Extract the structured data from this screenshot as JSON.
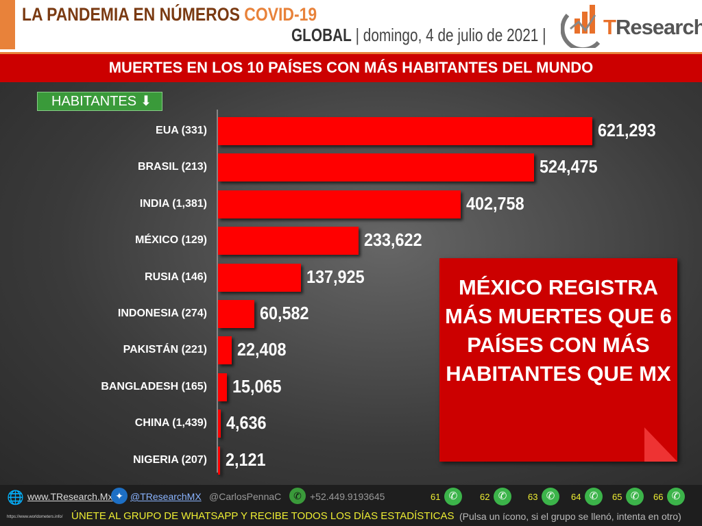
{
  "header": {
    "title": "LA PANDEMIA EN NÚMEROS",
    "title_accent": "COVID-19",
    "scope": "GLOBAL",
    "date": "domingo, 4 de julio de 2021",
    "logo_text": "TResearch"
  },
  "subtitle": "MUERTES EN LOS 10 PAÍSES CON MÁS HABITANTES DEL MUNDO",
  "sort_label": "HABITANTES",
  "chart_data": {
    "type": "bar",
    "orientation": "horizontal",
    "title": "MUERTES EN LOS 10 PAÍSES CON MÁS HABITANTES DEL MUNDO",
    "categories": [
      "EUA (331)",
      "BRASIL (213)",
      "INDIA (1,381)",
      "MÉXICO (129)",
      "RUSIA (146)",
      "INDONESIA (274)",
      "PAKISTÁN (221)",
      "BANGLADESH (165)",
      "CHINA (1,439)",
      "NIGERIA (207)"
    ],
    "values": [
      621293,
      524475,
      402758,
      233622,
      137925,
      60582,
      22408,
      15065,
      4636,
      2121
    ],
    "value_labels": [
      "621,293",
      "524,475",
      "402,758",
      "233,622",
      "137,925",
      "60,582",
      "22,408",
      "15,065",
      "4,636",
      "2,121"
    ],
    "bar_color": "#ff0000",
    "grid": false
  },
  "callout": "MÉXICO REGISTRA MÁS MUERTES QUE 6 PAÍSES CON MÁS HABITANTES QUE MX",
  "footer": {
    "web": "www.TResearch.Mx",
    "twitter": "@TResearchMX",
    "personal": "@CarlosPennaC",
    "phone": "+52.449.9193645",
    "groups": [
      "61",
      "62",
      "63",
      "64",
      "65",
      "66"
    ],
    "source": "https://www.worldometers.info/",
    "cta": "ÚNETE AL GRUPO DE WHATSAPP Y RECIBE TODOS LOS DÍAS ESTADÍSTICAS",
    "cta_note": "(Pulsa un ícono, si el grupo se llenó, intenta en otro)"
  }
}
